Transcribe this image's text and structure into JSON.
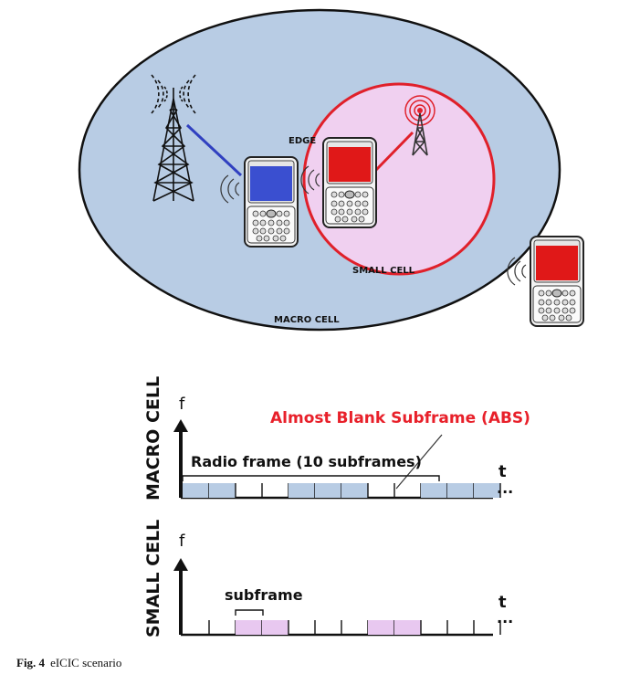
{
  "scenario": {
    "macro_label": "MACRO CELL",
    "small_label": "SMALL CELL",
    "edge_label": "EDGE"
  },
  "colors": {
    "macro_fill": "#b8cce4",
    "macro_border": "#111111",
    "small_fill": "#f0d0f0",
    "small_border": "#e0202a",
    "blue_screen": "#3a4fd0",
    "red_screen": "#e01818",
    "macro_link": "#3040c0",
    "small_link": "#e0202a",
    "abs_text": "#e8202a",
    "macro_subframe": "#b8cce4",
    "small_subframe": "#e8c8f0"
  },
  "macro_timeline": {
    "row_label": "MACRO CELL",
    "f_label": "f",
    "t_label": "t",
    "ellipsis": "...",
    "abs_label": "Almost Blank Subframe (ABS)",
    "radio_frame_label": "Radio frame (10 subframes)",
    "subframes_filled": [
      1,
      1,
      0,
      0,
      1,
      1,
      1,
      0,
      0,
      1,
      1,
      1
    ]
  },
  "small_timeline": {
    "row_label": "SMALL CELL",
    "f_label": "f",
    "t_label": "t",
    "ellipsis": "...",
    "subframe_label": "subframe",
    "subframes_filled": [
      0,
      0,
      1,
      1,
      0,
      0,
      0,
      1,
      1,
      0,
      0,
      0
    ]
  },
  "caption": {
    "fig": "Fig. 4",
    "text": "eICIC scenario"
  }
}
